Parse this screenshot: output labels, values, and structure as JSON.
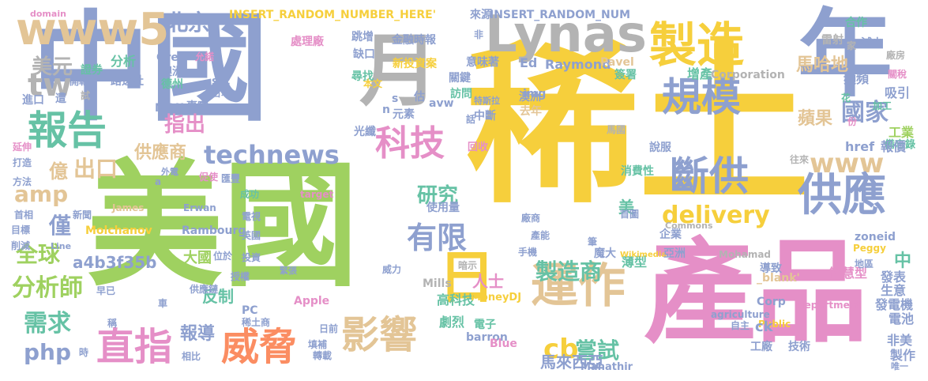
{
  "colors": {
    "yellow": "#f6cf3c",
    "green": "#9fd160",
    "blue": "#8ea0cf",
    "pink": "#e58fc7",
    "tan": "#e3c596",
    "teal": "#66c2a5",
    "orange": "#fb8d62",
    "gray": "#b3b3b3"
  },
  "words": [
    {
      "text": "稀土",
      "color": "yellow"
    },
    {
      "text": "美國",
      "color": "green"
    },
    {
      "text": "中國",
      "color": "blue"
    },
    {
      "text": "產品",
      "color": "pink"
    },
    {
      "text": "年",
      "color": "blue"
    },
    {
      "text": "Lynas",
      "color": "gray"
    },
    {
      "text": "製造",
      "color": "yellow"
    },
    {
      "text": "月",
      "color": "gray"
    },
    {
      "text": "日",
      "color": "yellow"
    },
    {
      "text": "運作",
      "color": "tan"
    },
    {
      "text": "報告",
      "color": "teal"
    },
    {
      "text": "www5",
      "color": "tan"
    },
    {
      "text": "tw",
      "color": "gray"
    },
    {
      "text": "規模",
      "color": "blue"
    },
    {
      "text": "科技",
      "color": "pink"
    },
    {
      "text": "technews",
      "color": "blue"
    },
    {
      "text": "斷供",
      "color": "blue"
    },
    {
      "text": "www",
      "color": "tan"
    },
    {
      "text": "供應",
      "color": "blue"
    },
    {
      "text": "威脅",
      "color": "orange"
    },
    {
      "text": "影響",
      "color": "tan"
    },
    {
      "text": "直指",
      "color": "pink"
    },
    {
      "text": "有限",
      "color": "blue"
    },
    {
      "text": "delivery",
      "color": "yellow"
    },
    {
      "text": "北京",
      "color": "blue"
    },
    {
      "text": "美元",
      "color": "gray"
    },
    {
      "text": "指出",
      "color": "pink"
    },
    {
      "text": "供應商",
      "color": "tan"
    },
    {
      "text": "國家",
      "color": "blue"
    },
    {
      "text": "蘋果",
      "color": "tan"
    },
    {
      "text": "馬哈地",
      "color": "tan"
    },
    {
      "text": "億",
      "color": "tan"
    },
    {
      "text": "出口",
      "color": "tan"
    },
    {
      "text": "amp",
      "color": "tan"
    },
    {
      "text": "研究",
      "color": "teal"
    },
    {
      "text": "僅",
      "color": "blue"
    },
    {
      "text": "全球",
      "color": "green"
    },
    {
      "text": "a4b3f35b",
      "color": "blue"
    },
    {
      "text": "分析師",
      "color": "green"
    },
    {
      "text": "需求",
      "color": "teal"
    },
    {
      "text": "php",
      "color": "blue"
    },
    {
      "text": "報導",
      "color": "blue"
    },
    {
      "text": "製造商",
      "color": "teal"
    },
    {
      "text": "cb",
      "color": "yellow"
    },
    {
      "text": "嘗試",
      "color": "teal"
    },
    {
      "text": "馬來西亞",
      "color": "blue"
    },
    {
      "text": "大國",
      "color": "green"
    },
    {
      "text": "反制",
      "color": "teal"
    },
    {
      "text": "美",
      "color": "teal"
    },
    {
      "text": "中",
      "color": "teal"
    },
    {
      "text": "人士",
      "color": "pink"
    },
    {
      "text": "高科技",
      "color": "teal"
    },
    {
      "text": "劇烈",
      "color": "teal"
    },
    {
      "text": "薄型",
      "color": "teal"
    },
    {
      "text": "智慧型",
      "color": "pink"
    },
    {
      "text": "發表",
      "color": "blue"
    },
    {
      "text": "生意",
      "color": "blue"
    },
    {
      "text": "發電機",
      "color": "blue"
    },
    {
      "text": "電池",
      "color": "blue"
    },
    {
      "text": "非美",
      "color": "blue"
    },
    {
      "text": "製作",
      "color": "blue"
    },
    {
      "text": "工業",
      "color": "green"
    },
    {
      "text": "備忘錄",
      "color": "teal"
    },
    {
      "text": "頻頻",
      "color": "blue"
    },
    {
      "text": "吸引",
      "color": "blue"
    },
    {
      "text": "增產",
      "color": "teal"
    },
    {
      "text": "花",
      "color": "teal"
    },
    {
      "text": "加工",
      "color": "teal"
    },
    {
      "text": "中斷",
      "color": "blue"
    },
    {
      "text": "去年",
      "color": "tan"
    },
    {
      "text": "元素",
      "color": "blue"
    },
    {
      "text": "訪問",
      "color": "teal"
    },
    {
      "text": "澳洲",
      "color": "blue"
    },
    {
      "text": "關鍵",
      "color": "blue"
    },
    {
      "text": "意味著",
      "color": "blue"
    },
    {
      "text": "尋找",
      "color": "teal"
    },
    {
      "text": "新投資案",
      "color": "yellow"
    },
    {
      "text": "金融時報",
      "color": "blue"
    },
    {
      "text": "跳增",
      "color": "blue"
    },
    {
      "text": "處理廠",
      "color": "pink"
    },
    {
      "text": "缺口",
      "color": "blue"
    },
    {
      "text": "INSERT_RANDOM_NUMBER_HERE'",
      "color": "yellow"
    },
    {
      "text": "INSERT_RANDOM_NUM",
      "color": "blue"
    },
    {
      "text": "來源",
      "color": "blue"
    },
    {
      "text": "domain",
      "color": "pink"
    },
    {
      "text": "href",
      "color": "blue"
    },
    {
      "text": "報價",
      "color": "blue"
    },
    {
      "text": "合作",
      "color": "teal"
    },
    {
      "text": "雷射",
      "color": "gray"
    },
    {
      "text": "減少",
      "color": "blue"
    },
    {
      "text": "家",
      "color": "gray"
    },
    {
      "text": "廠房",
      "color": "gray"
    },
    {
      "text": "Ed",
      "color": "blue"
    },
    {
      "text": "Raymond",
      "color": "blue"
    },
    {
      "text": "Pavel",
      "color": "tan"
    },
    {
      "text": "簽署",
      "color": "teal"
    },
    {
      "text": "Corporation",
      "color": "gray"
    },
    {
      "text": "Greb",
      "color": "blue"
    },
    {
      "text": "分析",
      "color": "teal"
    },
    {
      "text": "路透社",
      "color": "blue"
    },
    {
      "text": "允諾",
      "color": "pink"
    },
    {
      "text": "澳洲",
      "color": "blue"
    },
    {
      "text": "德州",
      "color": "teal"
    },
    {
      "text": "src",
      "color": "blue"
    },
    {
      "text": "日本",
      "color": "blue"
    },
    {
      "text": "證券",
      "color": "teal"
    },
    {
      "text": "開戰",
      "color": "blue"
    },
    {
      "text": "MOU",
      "color": "blue"
    },
    {
      "text": "事實",
      "color": "blue"
    },
    {
      "text": "進口",
      "color": "blue"
    },
    {
      "text": "遭",
      "color": "blue"
    },
    {
      "text": "試",
      "color": "gray"
    },
    {
      "text": "img",
      "color": "blue"
    },
    {
      "text": "avw",
      "color": "blue"
    },
    {
      "text": "n",
      "color": "blue"
    },
    {
      "text": "s",
      "color": "blue"
    },
    {
      "text": "估",
      "color": "blue"
    },
    {
      "text": "特斯拉",
      "color": "blue"
    },
    {
      "text": "光纖",
      "color": "blue"
    },
    {
      "text": "回收",
      "color": "pink"
    },
    {
      "text": "馬國",
      "color": "gray"
    },
    {
      "text": "說服",
      "color": "blue"
    },
    {
      "text": "往來",
      "color": "gray"
    },
    {
      "text": "消費性",
      "color": "teal"
    },
    {
      "text": "首圖",
      "color": "blue"
    },
    {
      "text": "企業",
      "color": "blue"
    },
    {
      "text": "Commons",
      "color": "gray"
    },
    {
      "text": "zoneid",
      "color": "blue"
    },
    {
      "text": "Peggy",
      "color": "yellow"
    },
    {
      "text": "Mohamad",
      "color": "gray"
    },
    {
      "text": "導致",
      "color": "blue"
    },
    {
      "text": "_blank'",
      "color": "tan"
    },
    {
      "text": "地區",
      "color": "blue"
    },
    {
      "text": "Corp",
      "color": "blue"
    },
    {
      "text": "department",
      "color": "pink"
    },
    {
      "text": "agriculture",
      "color": "blue"
    },
    {
      "text": "Public",
      "color": "yellow"
    },
    {
      "text": "自主",
      "color": "blue"
    },
    {
      "text": "技術",
      "color": "blue"
    },
    {
      "text": "工廠",
      "color": "blue"
    },
    {
      "text": "ck",
      "color": "blue"
    },
    {
      "text": "Mahathir",
      "color": "blue"
    },
    {
      "text": "唯一",
      "color": "blue"
    },
    {
      "text": "Wikimedia",
      "color": "yellow"
    },
    {
      "text": "亞洲",
      "color": "blue"
    },
    {
      "text": "魔大",
      "color": "blue"
    },
    {
      "text": "電子",
      "color": "teal"
    },
    {
      "text": "barron",
      "color": "blue"
    },
    {
      "text": "MoneyDJ",
      "color": "yellow"
    },
    {
      "text": "Mills",
      "color": "gray"
    },
    {
      "text": "暗示",
      "color": "gray"
    },
    {
      "text": "Blue",
      "color": "pink"
    },
    {
      "text": "日前",
      "color": "blue"
    },
    {
      "text": "填補",
      "color": "blue"
    },
    {
      "text": "轉載",
      "color": "blue"
    },
    {
      "text": "稀土商",
      "color": "blue"
    },
    {
      "text": "Apple",
      "color": "pink"
    },
    {
      "text": "PC",
      "color": "blue"
    },
    {
      "text": "電視",
      "color": "blue"
    },
    {
      "text": "英國",
      "color": "blue"
    },
    {
      "text": "投資",
      "color": "blue"
    },
    {
      "text": "位於",
      "color": "blue"
    },
    {
      "text": "授權",
      "color": "blue"
    },
    {
      "text": "供應鏈",
      "color": "blue"
    },
    {
      "text": "Molchanov",
      "color": "yellow"
    },
    {
      "text": "Rambourg",
      "color": "blue"
    },
    {
      "text": "James",
      "color": "tan"
    },
    {
      "text": "Erwan",
      "color": "blue"
    },
    {
      "text": "target",
      "color": "pink"
    },
    {
      "text": "使用量",
      "color": "blue"
    },
    {
      "text": "廠商",
      "color": "blue"
    },
    {
      "text": "產能",
      "color": "blue"
    },
    {
      "text": "手機",
      "color": "blue"
    },
    {
      "text": "筆",
      "color": "blue"
    },
    {
      "text": "威力",
      "color": "blue"
    },
    {
      "text": "成功",
      "color": "teal"
    },
    {
      "text": "匯豐",
      "color": "blue"
    },
    {
      "text": "促使",
      "color": "pink"
    },
    {
      "text": "a",
      "color": "blue"
    },
    {
      "text": "外電",
      "color": "blue"
    },
    {
      "text": "方法",
      "color": "blue"
    },
    {
      "text": "打造",
      "color": "blue"
    },
    {
      "text": "延伸",
      "color": "pink"
    },
    {
      "text": "首相",
      "color": "blue"
    },
    {
      "text": "新聞",
      "color": "blue"
    },
    {
      "text": "目標",
      "color": "blue"
    },
    {
      "text": "削減",
      "color": "blue"
    },
    {
      "text": "Line",
      "color": "blue"
    },
    {
      "text": "緊張",
      "color": "blue"
    },
    {
      "text": "早已",
      "color": "blue"
    },
    {
      "text": "車",
      "color": "blue"
    },
    {
      "text": "稱",
      "color": "blue"
    },
    {
      "text": "時",
      "color": "blue"
    },
    {
      "text": "相比",
      "color": "blue"
    },
    {
      "text": "份",
      "color": "pink"
    },
    {
      "text": "非",
      "color": "blue"
    },
    {
      "text": "話",
      "color": "blue"
    },
    {
      "text": "關稅",
      "color": "pink"
    },
    {
      "text": "本文",
      "color": "yellow"
    }
  ]
}
